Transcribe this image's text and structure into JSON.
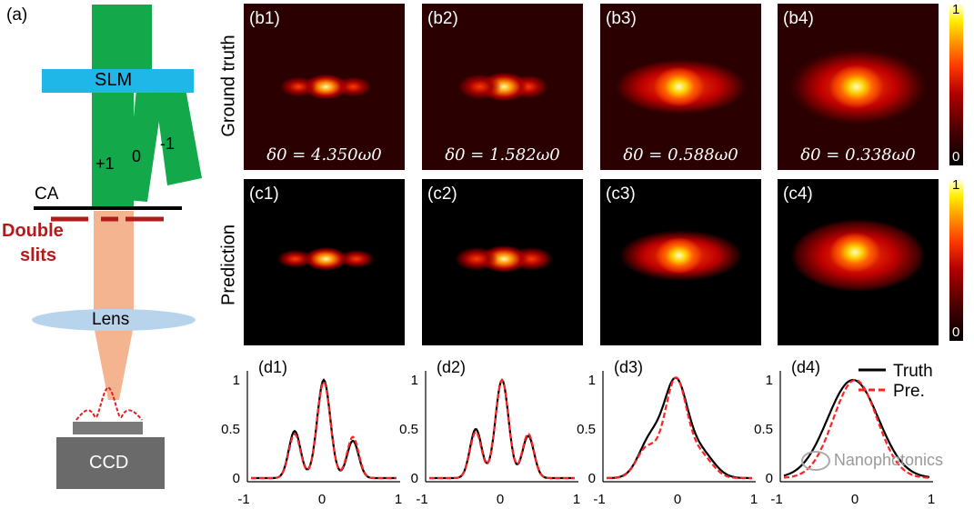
{
  "schematic": {
    "label": "(a)",
    "slm": "SLM",
    "orders": [
      "+1",
      "0",
      "-1"
    ],
    "ca": "CA",
    "double_slits": [
      "Double",
      "slits"
    ],
    "lens": "Lens",
    "ccd": "CCD"
  },
  "row_titles": {
    "ground_truth": "Ground truth",
    "prediction": "Prediction"
  },
  "b_panels": [
    {
      "tag": "(b1)",
      "delta": "δ0 = 4.350ω0"
    },
    {
      "tag": "(b2)",
      "delta": "δ0 = 1.582ω0"
    },
    {
      "tag": "(b3)",
      "delta": "δ0 = 0.588ω0"
    },
    {
      "tag": "(b4)",
      "delta": "δ0 = 0.338ω0"
    }
  ],
  "c_panels": [
    {
      "tag": "(c1)"
    },
    {
      "tag": "(c2)"
    },
    {
      "tag": "(c3)"
    },
    {
      "tag": "(c4)"
    }
  ],
  "colorbar": {
    "max_label": "1",
    "min_label": "0"
  },
  "d_plots": [
    {
      "tag": "(d1)"
    },
    {
      "tag": "(d2)"
    },
    {
      "tag": "(d3)"
    },
    {
      "tag": "(d4)"
    }
  ],
  "axis_ticks": {
    "x": [
      "-1",
      "0",
      "1"
    ],
    "y": [
      "0",
      "0.5",
      "1"
    ]
  },
  "legend": {
    "truth": "Truth",
    "pred": "Pre."
  },
  "watermark": "Nanophotonics",
  "colors": {
    "beam": "#13a84a",
    "slm": "#1fb6e8",
    "slit": "#b31b1b",
    "beam_after": "#f3b48f",
    "lens": "#b8d3ec",
    "ccd": "#6a6a6a",
    "truth": "#000000",
    "pred": "#ff2222"
  }
}
